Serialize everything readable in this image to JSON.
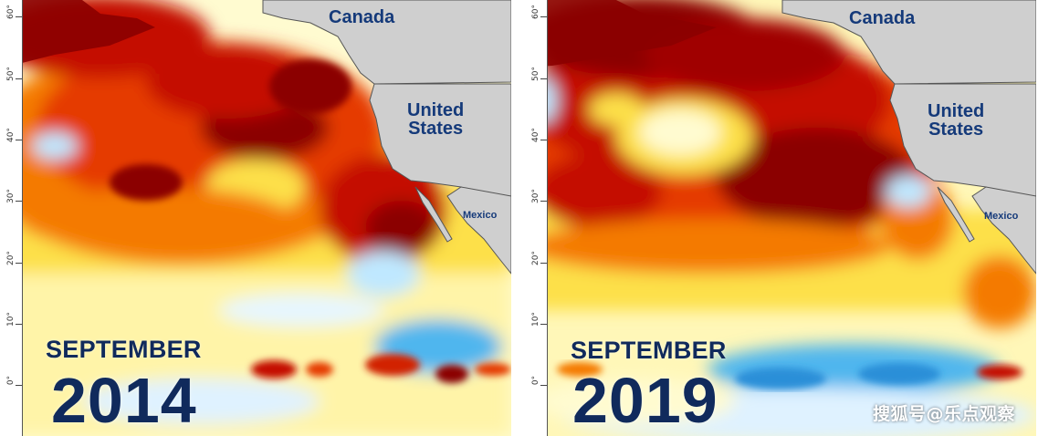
{
  "maps": [
    {
      "month": "SEPTEMBER",
      "year": "2014",
      "labels": {
        "canada": "Canada",
        "us_line1": "United",
        "us_line2": "States",
        "mexico": "Mexico"
      }
    },
    {
      "month": "SEPTEMBER",
      "year": "2019",
      "labels": {
        "canada": "Canada",
        "us_line1": "United",
        "us_line2": "States",
        "mexico": "Mexico"
      }
    }
  ],
  "latitude_labels": [
    "60°",
    "50°",
    "40°",
    "30°",
    "20°",
    "10°",
    "0°"
  ],
  "watermark": "搜狐号@乐点观察",
  "colors": {
    "land": "#cfcfcf",
    "darkest_warm": "#8b0000",
    "dark_red": "#c40a00",
    "red": "#e53a00",
    "orange": "#f47a00",
    "yellow": "#fde04a",
    "pale_yellow": "#fffbd0",
    "light_blue": "#bfe8ff",
    "blue": "#4fb6ee",
    "text_navy": "#102a5c"
  }
}
